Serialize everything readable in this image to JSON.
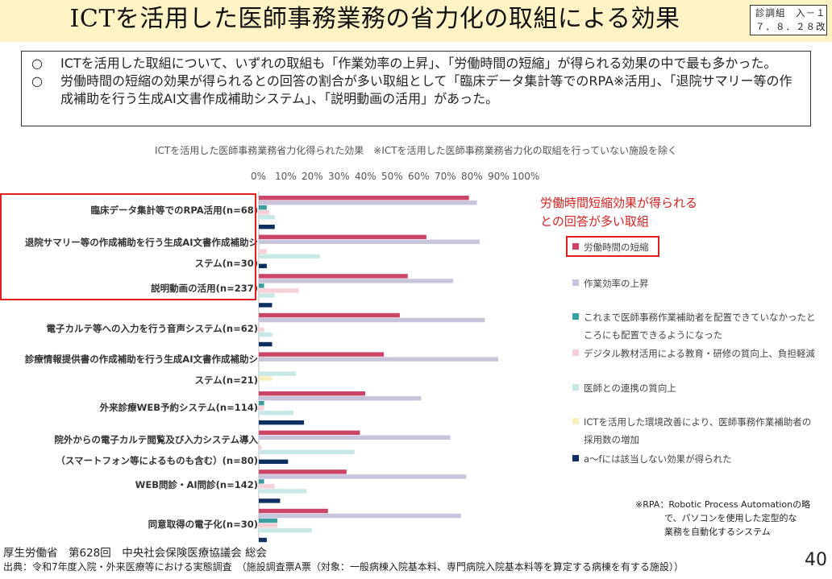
{
  "header": {
    "title": "ICTを活用した医師事務業務の省力化の取組による効果",
    "badge_line1": "診調組　入－１",
    "badge_line2": "７．８．２８改"
  },
  "summary": {
    "bullet_mark": "○",
    "point1": "ICTを活用した取組について、いずれの取組も「作業効率の上昇」、「労働時間の短縮」が得られる効果の中で最も多かった。",
    "point2": "労働時間の短縮の効果が得られるとの回答の割合が多い取組として「臨床データ集計等でのRPA※活用」、「退院サマリー等の作成補助を行う生成AI文書作成補助システム」、「説明動画の活用」があった。"
  },
  "annotation": {
    "red_note_line1": "労働時間短縮効果が得られる",
    "red_note_line2": "との回答が多い取組",
    "rpa_note_line1": "※RPA：Robotic Process Automationの略",
    "rpa_note_line2": "で、パソコンを使用した定型的な",
    "rpa_note_line3": "業務を自動化するシステム"
  },
  "footer": {
    "org": "厚生労働省　第628回　中央社会保険医療協議会 総会",
    "source": "出典：令和7年度入院・外来医療等における実態調査　（施設調査票A票（対象：一般病棟入院基本料、専門病院入院基本料等を算定する病棟を有する施設））",
    "page": "40"
  },
  "chart_data": {
    "type": "bar",
    "orientation": "horizontal",
    "title": "ICTを活用した医師事務業務省力化得られた効果　※ICTを活用した医師事務業務省力化の取組を行っていない施設を除く",
    "xlim": [
      0,
      100
    ],
    "tick_labels": [
      "0%",
      "10%",
      "20%",
      "30%",
      "40%",
      "50%",
      "60%",
      "70%",
      "80%",
      "90%",
      "100%"
    ],
    "categories": [
      [
        "臨床データ集計等でのRPA活用(n=68)"
      ],
      [
        "退院サマリー等の作成補助を行う生成AI文書作成補助シ",
        "ステム(n=30)"
      ],
      [
        "説明動画の活用(n=237)"
      ],
      [
        "電子カルテ等への入力を行う音声システム(n=62)"
      ],
      [
        "診療情報提供書の作成補助を行う生成AI文書作成補助シ",
        "ステム(n=21)"
      ],
      [
        "外来診療WEB予約システム(n=114)"
      ],
      [
        "院外からの電子カルテ閲覧及び入力システム導入",
        "（スマートフォン等によるものも含む）(n=80)"
      ],
      [
        "WEB問診・AI問診(n=142)"
      ],
      [
        "同意取得の電子化(n=30)"
      ]
    ],
    "series": [
      {
        "name": "労働時間の短縮",
        "color": "#cc4466",
        "values": [
          79,
          63,
          56,
          53,
          47,
          40,
          38,
          33,
          26
        ]
      },
      {
        "name": "作業効率の上昇",
        "color": "#c8c4dc",
        "values": [
          82,
          83,
          73,
          85,
          90,
          61,
          72,
          78,
          76
        ]
      },
      {
        "name": "これまで医師事務作業補助者を配置できていなかったところにも配置できるようになった",
        "color": "#3a9e9e",
        "values": [
          3,
          0,
          2,
          0,
          0,
          2,
          0,
          2,
          7
        ]
      },
      {
        "name": "デジタル教材活用による教育・研修の質向上、負担軽減",
        "color": "#f6d0d6",
        "values": [
          4,
          3,
          15,
          2,
          0,
          2,
          1,
          6,
          7
        ]
      },
      {
        "name": "医師との連携の質向上",
        "color": "#c8e8e8",
        "values": [
          6,
          23,
          6,
          5,
          14,
          13,
          36,
          18,
          20
        ]
      },
      {
        "name": "ICTを活用した環境改善により、医師事務作業補助者の採用数の増加",
        "color": "#f8eebc",
        "values": [
          0,
          0,
          0,
          0,
          5,
          0,
          0,
          0,
          0
        ]
      },
      {
        "name": "a～fには該当しない効果が得られた",
        "color": "#0e2f62",
        "values": [
          6,
          3,
          5,
          5,
          0,
          17,
          11,
          8,
          3
        ]
      }
    ],
    "legend": [
      [
        "労働時間の短縮"
      ],
      [
        "作業効率の上昇"
      ],
      [
        "これまで医師事務作業補助者を配置できていなかったと",
        "ころにも配置できるようになった"
      ],
      [
        "デジタル教材活用による教育・研修の質向上、負担軽減"
      ],
      [
        "医師との連携の質向上"
      ],
      [
        "ICTを活用した環境改善により、医師事務作業補助者の",
        "採用数の増加"
      ],
      [
        "a～fには該当しない効果が得られた"
      ]
    ]
  }
}
